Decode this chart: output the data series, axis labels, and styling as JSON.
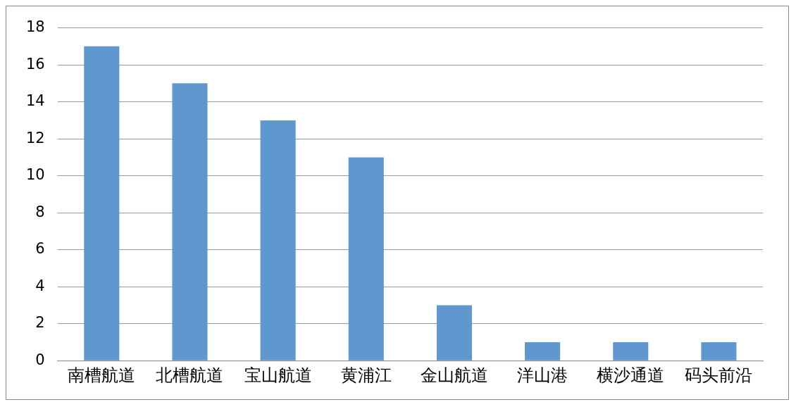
{
  "chart_data": {
    "type": "bar",
    "categories": [
      "南槽航道",
      "北槽航道",
      "宝山航道",
      "黄浦江",
      "金山航道",
      "洋山港",
      "横沙通道",
      "码头前沿"
    ],
    "values": [
      17,
      15,
      13,
      11,
      3,
      1,
      1,
      1
    ],
    "color": "#5f97cf",
    "ylim": [
      0,
      18
    ],
    "yticks": [
      0,
      2,
      4,
      6,
      8,
      10,
      12,
      14,
      16,
      18
    ],
    "grid": "y",
    "legend": false
  }
}
